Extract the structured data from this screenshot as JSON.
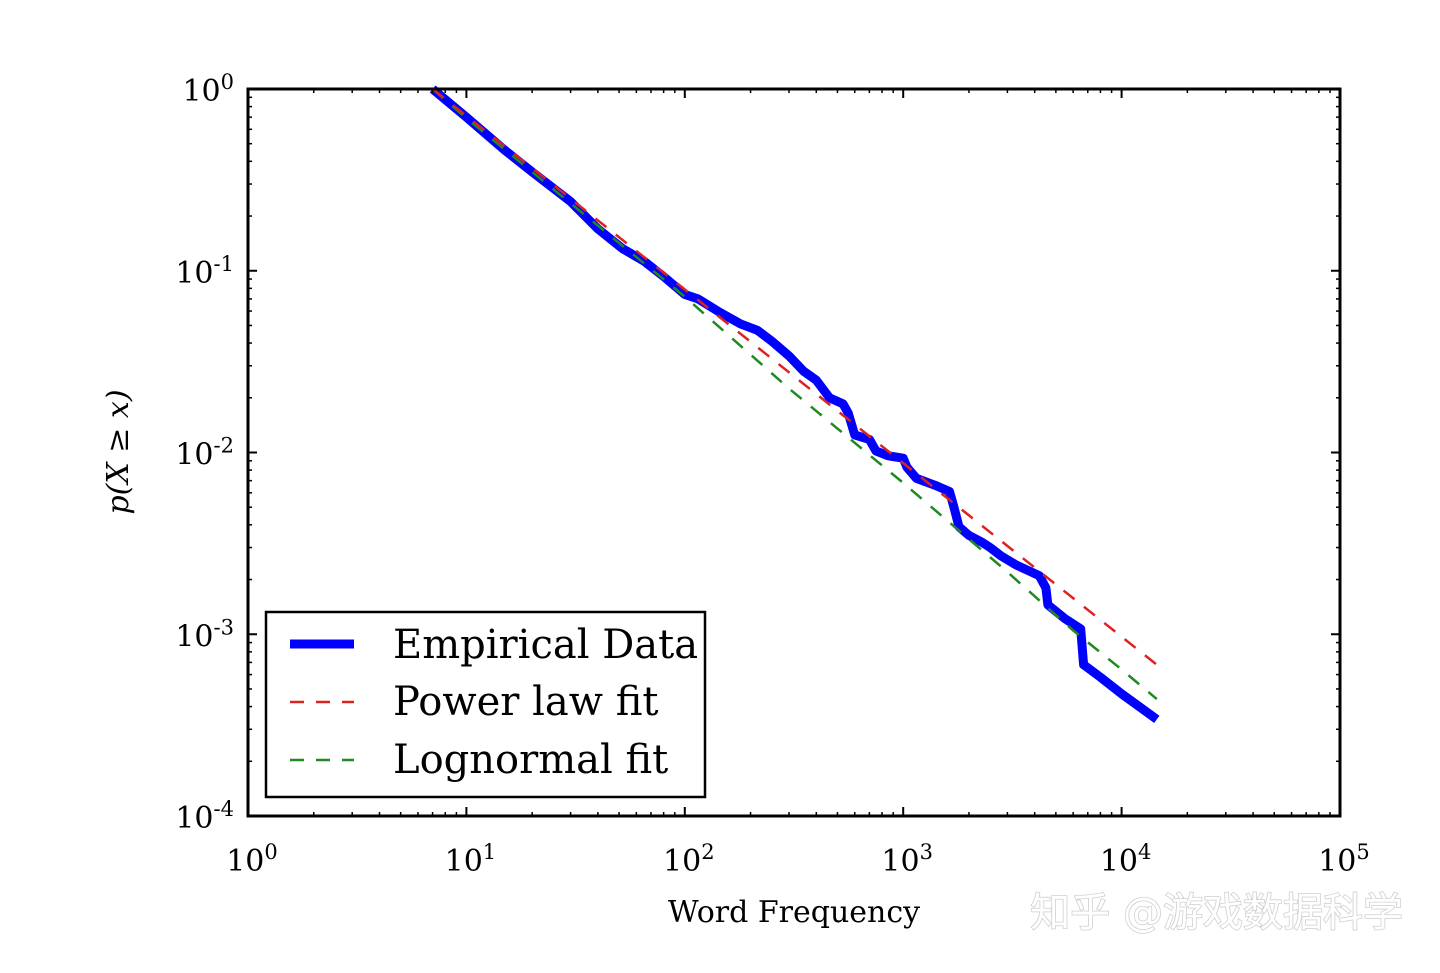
{
  "watermark": "知乎 @游戏数据科学",
  "chart_data": {
    "type": "line",
    "xscale": "log",
    "yscale": "log",
    "xlabel": "Word Frequency",
    "ylabel": "p(X ≥ x)",
    "xlim": [
      1,
      100000
    ],
    "ylim": [
      0.0001,
      1
    ],
    "grid": false,
    "legend_position": "lower-left",
    "x_ticks": [
      {
        "base": "10",
        "exp": "0",
        "value": 1
      },
      {
        "base": "10",
        "exp": "1",
        "value": 10
      },
      {
        "base": "10",
        "exp": "2",
        "value": 100
      },
      {
        "base": "10",
        "exp": "3",
        "value": 1000
      },
      {
        "base": "10",
        "exp": "4",
        "value": 10000
      },
      {
        "base": "10",
        "exp": "5",
        "value": 100000
      }
    ],
    "y_ticks": [
      {
        "base": "10",
        "exp": "0",
        "value": 1
      },
      {
        "base": "10",
        "exp": "-1",
        "value": 0.1
      },
      {
        "base": "10",
        "exp": "-2",
        "value": 0.01
      },
      {
        "base": "10",
        "exp": "-3",
        "value": 0.001
      },
      {
        "base": "10",
        "exp": "-4",
        "value": 0.0001
      }
    ],
    "series": [
      {
        "name": "Empirical Data",
        "color": "#0000ff",
        "style": "solid",
        "points": [
          [
            7,
            1.0
          ],
          [
            10,
            0.7
          ],
          [
            15,
            0.46
          ],
          [
            20,
            0.35
          ],
          [
            30,
            0.24
          ],
          [
            40,
            0.17
          ],
          [
            52,
            0.132
          ],
          [
            65,
            0.113
          ],
          [
            80,
            0.093
          ],
          [
            100,
            0.074
          ],
          [
            115,
            0.07
          ],
          [
            145,
            0.059
          ],
          [
            180,
            0.051
          ],
          [
            215,
            0.047
          ],
          [
            250,
            0.041
          ],
          [
            300,
            0.034
          ],
          [
            350,
            0.028
          ],
          [
            400,
            0.025
          ],
          [
            460,
            0.02
          ],
          [
            530,
            0.0185
          ],
          [
            560,
            0.0165
          ],
          [
            600,
            0.0125
          ],
          [
            700,
            0.0118
          ],
          [
            750,
            0.0102
          ],
          [
            850,
            0.0096
          ],
          [
            1000,
            0.0093
          ],
          [
            1040,
            0.0083
          ],
          [
            1150,
            0.0072
          ],
          [
            1400,
            0.0066
          ],
          [
            1630,
            0.0061
          ],
          [
            1700,
            0.0051
          ],
          [
            1800,
            0.0039
          ],
          [
            2000,
            0.0035
          ],
          [
            2300,
            0.0032
          ],
          [
            2500,
            0.003
          ],
          [
            2800,
            0.0027
          ],
          [
            3300,
            0.0024
          ],
          [
            4200,
            0.0021
          ],
          [
            4500,
            0.0018
          ],
          [
            4600,
            0.00145
          ],
          [
            5500,
            0.00122
          ],
          [
            6500,
            0.00107
          ],
          [
            6700,
            0.00068
          ],
          [
            8000,
            0.00058
          ],
          [
            10000,
            0.00047
          ],
          [
            14500,
            0.00034
          ]
        ]
      },
      {
        "name": "Power law fit",
        "color": "#dd2222",
        "style": "dashed",
        "points": [
          [
            7,
            1.0
          ],
          [
            14500,
            0.00068
          ]
        ]
      },
      {
        "name": "Lognormal fit",
        "color": "#228822",
        "style": "dashed",
        "points": [
          [
            7,
            1.0
          ],
          [
            10,
            0.69
          ],
          [
            30,
            0.235
          ],
          [
            100,
            0.072
          ],
          [
            300,
            0.0225
          ],
          [
            1000,
            0.0068
          ],
          [
            3000,
            0.0022
          ],
          [
            6000,
            0.00105
          ],
          [
            10000,
            0.00064
          ],
          [
            14500,
            0.00044
          ]
        ]
      }
    ]
  }
}
